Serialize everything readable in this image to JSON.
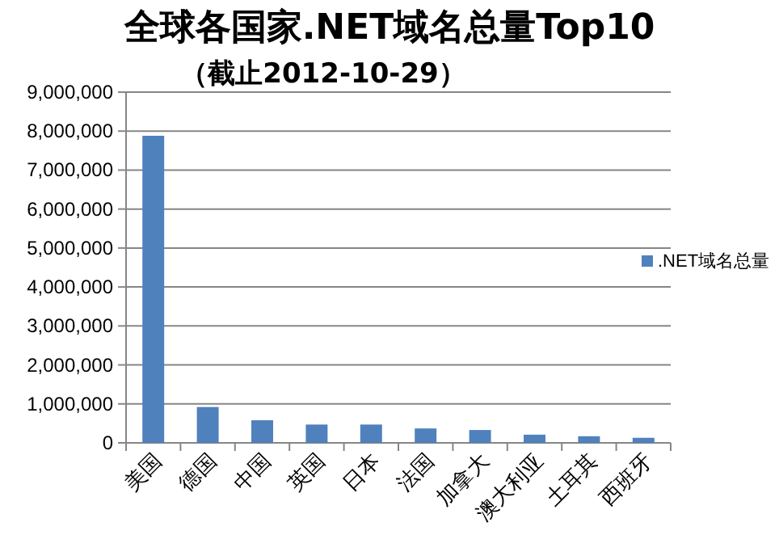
{
  "chart_data": {
    "type": "bar",
    "title": "全球各国家.NET域名总量Top10",
    "subtitle": "（截止2012-10-29）",
    "categories": [
      "美国",
      "德国",
      "中国",
      "英国",
      "日本",
      "法国",
      "加拿大",
      "澳大利亚",
      "土耳其",
      "西班牙"
    ],
    "series": [
      {
        "name": ".NET域名总量",
        "color": "#4f81bd",
        "values": [
          7880000,
          920000,
          580000,
          470000,
          470000,
          370000,
          330000,
          210000,
          170000,
          130000
        ]
      }
    ],
    "ylim": [
      0,
      9000000
    ],
    "yticks": [
      {
        "value": 0,
        "label": "0"
      },
      {
        "value": 1000000,
        "label": "1,000,000"
      },
      {
        "value": 2000000,
        "label": "2,000,000"
      },
      {
        "value": 3000000,
        "label": "3,000,000"
      },
      {
        "value": 4000000,
        "label": "4,000,000"
      },
      {
        "value": 5000000,
        "label": "5,000,000"
      },
      {
        "value": 6000000,
        "label": "6,000,000"
      },
      {
        "value": 7000000,
        "label": "7,000,000"
      },
      {
        "value": 8000000,
        "label": "8,000,000"
      },
      {
        "value": 9000000,
        "label": "9,000,000"
      }
    ],
    "grid": "y",
    "legend": "right"
  }
}
